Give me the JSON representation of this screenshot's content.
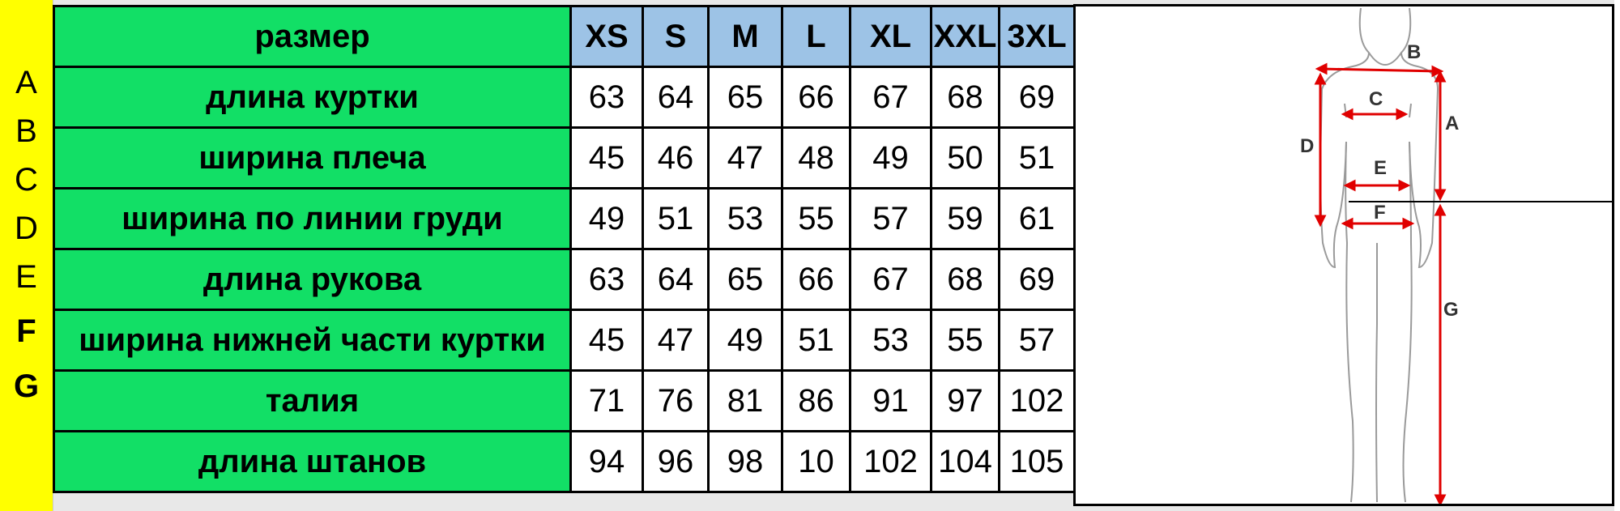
{
  "row_letters": [
    "A",
    "B",
    "C",
    "D",
    "E",
    "F",
    "G"
  ],
  "header": {
    "label": "размер",
    "sizes": [
      "XS",
      "S",
      "M",
      "L",
      "XL",
      "XXL",
      "3XL"
    ]
  },
  "rows": [
    {
      "label": "длина куртки",
      "values": [
        "63",
        "64",
        "65",
        "66",
        "67",
        "68",
        "69"
      ]
    },
    {
      "label": "ширина плеча",
      "values": [
        "45",
        "46",
        "47",
        "48",
        "49",
        "50",
        "51"
      ]
    },
    {
      "label": "ширина по линии груди",
      "values": [
        "49",
        "51",
        "53",
        "55",
        "57",
        "59",
        "61"
      ]
    },
    {
      "label": "длина рукова",
      "values": [
        "63",
        "64",
        "65",
        "66",
        "67",
        "68",
        "69"
      ]
    },
    {
      "label": "ширина нижней части куртки",
      "values": [
        "45",
        "47",
        "49",
        "51",
        "53",
        "55",
        "57"
      ]
    },
    {
      "label": "талия",
      "values": [
        "71",
        "76",
        "81",
        "86",
        "91",
        "97",
        "102"
      ]
    },
    {
      "label": "длина штанов",
      "values": [
        "94",
        "96",
        "98",
        "10",
        "102",
        "104",
        "105"
      ]
    }
  ],
  "figure": {
    "labels": {
      "A": "A",
      "B": "B",
      "C": "C",
      "D": "D",
      "E": "E",
      "F": "F",
      "G": "G"
    }
  },
  "colors": {
    "label_bg": "#12df66",
    "header_bg": "#9dc3e6",
    "letters_bg": "#ffff00",
    "arrow": "#e00000"
  }
}
